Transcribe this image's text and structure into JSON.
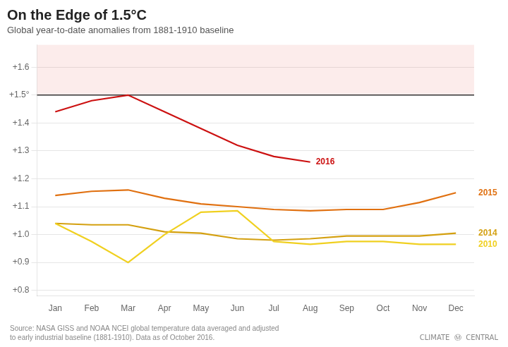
{
  "chart_data": {
    "type": "line",
    "title": "On the Edge of 1.5°C",
    "subtitle": "Global year-to-date anomalies from 1881-1910 baseline",
    "categories": [
      "Jan",
      "Feb",
      "Mar",
      "Apr",
      "May",
      "Jun",
      "Jul",
      "Aug",
      "Sep",
      "Oct",
      "Nov",
      "Dec"
    ],
    "series": [
      {
        "name": "2010",
        "color": "#f0d020",
        "values": [
          1.04,
          0.975,
          0.9,
          1.0,
          1.08,
          1.085,
          0.975,
          0.965,
          0.975,
          0.975,
          0.965,
          0.965
        ]
      },
      {
        "name": "2014",
        "color": "#d4a010",
        "values": [
          1.04,
          1.035,
          1.035,
          1.01,
          1.005,
          0.985,
          0.98,
          0.985,
          0.995,
          0.995,
          0.995,
          1.005
        ]
      },
      {
        "name": "2015",
        "color": "#e07010",
        "values": [
          1.14,
          1.155,
          1.16,
          1.13,
          1.11,
          1.1,
          1.09,
          1.085,
          1.09,
          1.09,
          1.115,
          1.15
        ]
      },
      {
        "name": "2016",
        "color": "#cc1111",
        "values": [
          1.44,
          1.48,
          1.5,
          1.44,
          1.38,
          1.32,
          1.28,
          1.26,
          null,
          null,
          null,
          null
        ]
      }
    ],
    "ylim": [
      0.78,
      1.68
    ],
    "yticks": [
      {
        "value": 0.8,
        "label": "+0.8"
      },
      {
        "value": 0.9,
        "label": "+0.9"
      },
      {
        "value": 1.0,
        "label": "+1.0"
      },
      {
        "value": 1.1,
        "label": "+1.1"
      },
      {
        "value": 1.2,
        "label": "+1.2"
      },
      {
        "value": 1.3,
        "label": "+1.3"
      },
      {
        "value": 1.4,
        "label": "+1.4"
      },
      {
        "value": 1.5,
        "label": "+1.5°"
      },
      {
        "value": 1.6,
        "label": "+1.6"
      }
    ],
    "threshold": 1.5,
    "grid": true,
    "annotations": [
      "Source: NASA GISS and NOAA NCEI global temperature data averaged and adjusted\nto early industrial baseline (1881-1910). Data as of October 2016.",
      "CLIMATE  Ⓜ  CENTRAL"
    ]
  }
}
